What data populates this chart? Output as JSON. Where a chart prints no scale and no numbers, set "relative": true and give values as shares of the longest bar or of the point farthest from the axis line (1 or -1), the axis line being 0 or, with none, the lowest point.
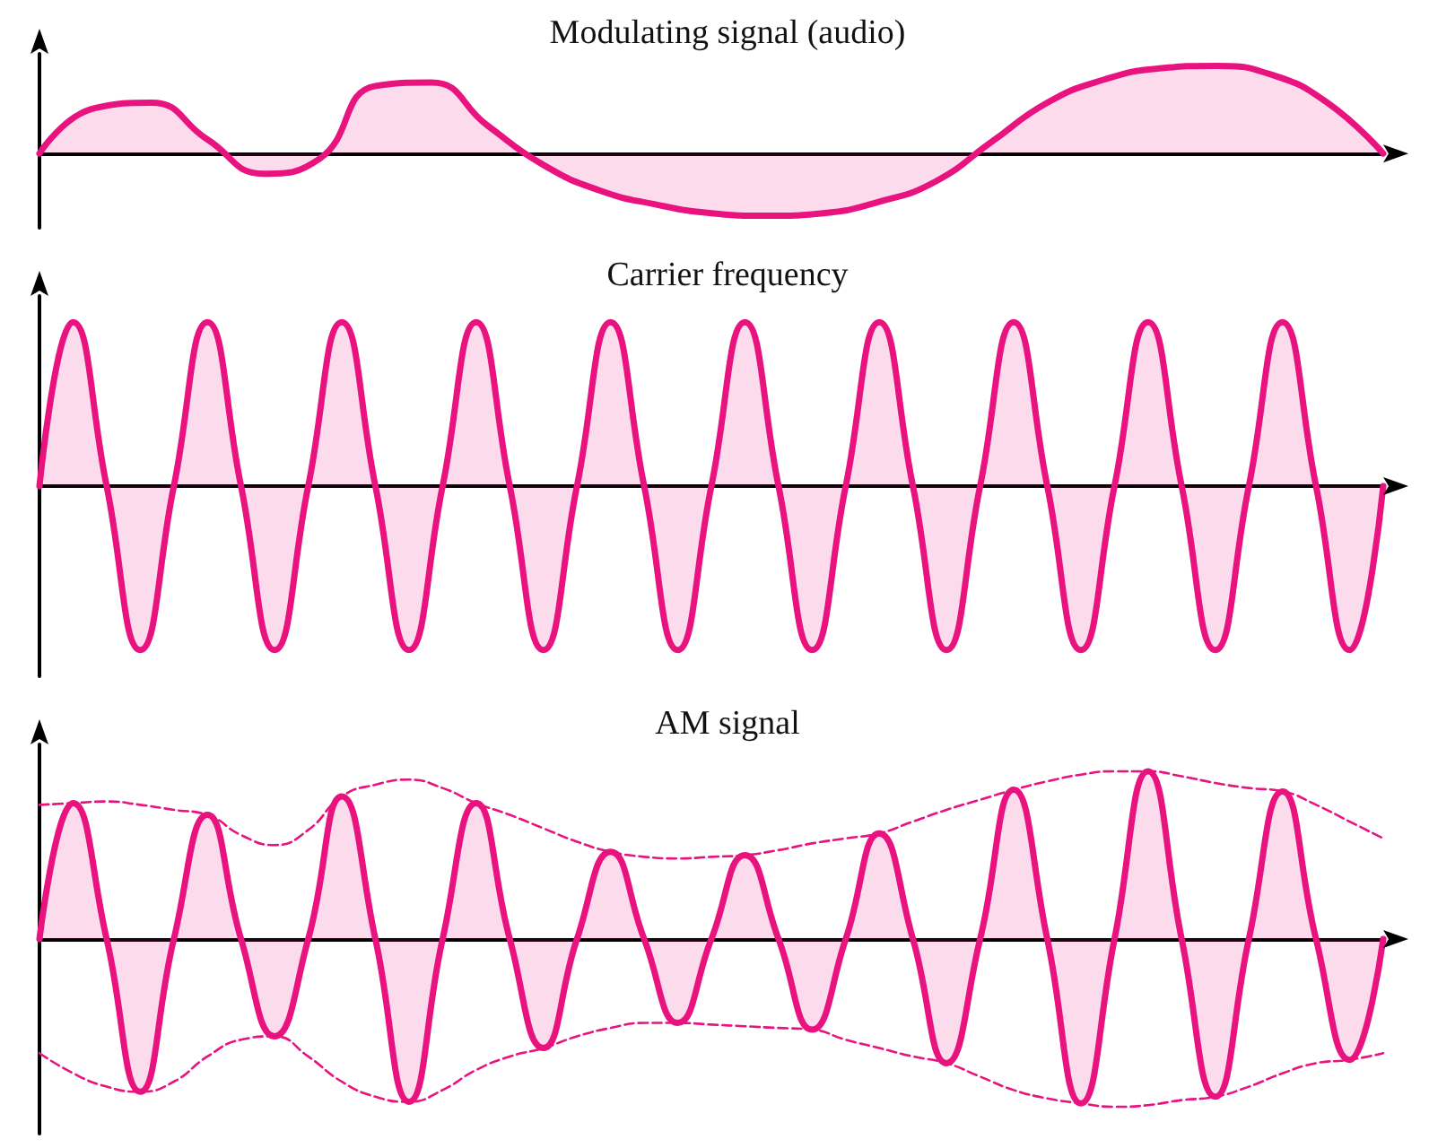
{
  "chart_data": [
    {
      "type": "area",
      "title": "Modulating signal (audio)",
      "relative": true,
      "grid": false,
      "marker": "none",
      "categories": [
        null,
        null,
        null,
        null,
        null,
        null,
        null,
        null,
        null,
        null,
        null,
        null,
        null,
        null,
        null,
        null,
        null,
        null,
        null,
        null,
        null,
        null,
        null,
        null,
        null
      ],
      "series": [
        {
          "color": "#e8137e",
          "values": [
            0,
            0.52,
            0.58,
            0.16,
            -0.23,
            -0.06,
            0.77,
            0.81,
            0.32,
            -0.13,
            -0.42,
            -0.58,
            -0.68,
            -0.71,
            -0.68,
            -0.55,
            -0.32,
            0.13,
            0.58,
            0.84,
            0.97,
            1,
            0.9,
            0.58,
            0
          ]
        }
      ]
    },
    {
      "type": "area",
      "title": "Carrier frequency",
      "relative": true,
      "grid": false,
      "marker": "none",
      "categories": [
        null,
        null,
        null,
        null,
        null,
        null,
        null,
        null,
        null,
        null,
        null,
        null,
        null,
        null,
        null,
        null,
        null,
        null,
        null,
        null,
        null,
        null,
        null,
        null,
        null,
        null,
        null,
        null,
        null,
        null,
        null,
        null,
        null,
        null,
        null,
        null,
        null,
        null,
        null,
        null,
        null
      ],
      "series": [
        {
          "color": "#e8137e",
          "values": [
            0,
            1,
            0,
            -1,
            0,
            1,
            0,
            -1,
            0,
            1,
            0,
            -1,
            0,
            1,
            0,
            -1,
            0,
            1,
            0,
            -1,
            0,
            1,
            0,
            -1,
            0,
            1,
            0,
            -1,
            0,
            1,
            0,
            -1,
            0,
            1,
            0,
            -1,
            0,
            1,
            0,
            -1,
            0
          ]
        }
      ]
    },
    {
      "type": "area",
      "title": "AM signal",
      "relative": true,
      "grid": false,
      "marker": "none",
      "categories": [
        null,
        null,
        null,
        null,
        null,
        null,
        null,
        null,
        null,
        null,
        null,
        null,
        null,
        null,
        null,
        null,
        null,
        null,
        null,
        null,
        null,
        null,
        null,
        null,
        null,
        null,
        null,
        null,
        null,
        null,
        null,
        null,
        null,
        null,
        null,
        null,
        null,
        null,
        null,
        null,
        null
      ],
      "series": [
        {
          "color": "#e8137e",
          "values": [
            0,
            0.81,
            0,
            -0.91,
            0,
            0.74,
            0,
            -0.58,
            0,
            0.85,
            0,
            -0.97,
            0,
            0.81,
            0,
            -0.65,
            0,
            0.52,
            0,
            -0.5,
            0,
            0.5,
            0,
            -0.54,
            0,
            0.63,
            0,
            -0.74,
            0,
            0.89,
            0,
            -0.98,
            0,
            1,
            0,
            -0.94,
            0,
            0.88,
            0,
            -0.72,
            0
          ]
        },
        {
          "type": "line",
          "line_style": "dashed",
          "color": "#e8137e",
          "values": [
            0.8,
            0.81,
            0.82,
            0.8,
            0.77,
            0.74,
            0.62,
            0.56,
            0.65,
            0.85,
            0.92,
            0.95,
            0.9,
            0.81,
            0.74,
            0.66,
            0.58,
            0.52,
            0.49,
            0.48,
            0.49,
            0.5,
            0.53,
            0.57,
            0.6,
            0.63,
            0.7,
            0.77,
            0.83,
            0.89,
            0.94,
            0.98,
            1,
            1,
            0.97,
            0.93,
            0.9,
            0.88,
            0.8,
            0.7,
            0.6
          ]
        },
        {
          "type": "line",
          "line_style": "dashed",
          "color": "#e8137e",
          "values": [
            -0.68,
            -0.8,
            -0.88,
            -0.91,
            -0.85,
            -0.7,
            -0.6,
            -0.58,
            -0.7,
            -0.85,
            -0.94,
            -0.97,
            -0.9,
            -0.78,
            -0.7,
            -0.65,
            -0.58,
            -0.53,
            -0.5,
            -0.5,
            -0.51,
            -0.52,
            -0.53,
            -0.54,
            -0.6,
            -0.65,
            -0.7,
            -0.74,
            -0.82,
            -0.9,
            -0.95,
            -0.98,
            -1,
            -0.99,
            -0.96,
            -0.94,
            -0.88,
            -0.8,
            -0.74,
            -0.72,
            -0.68
          ]
        }
      ]
    }
  ]
}
